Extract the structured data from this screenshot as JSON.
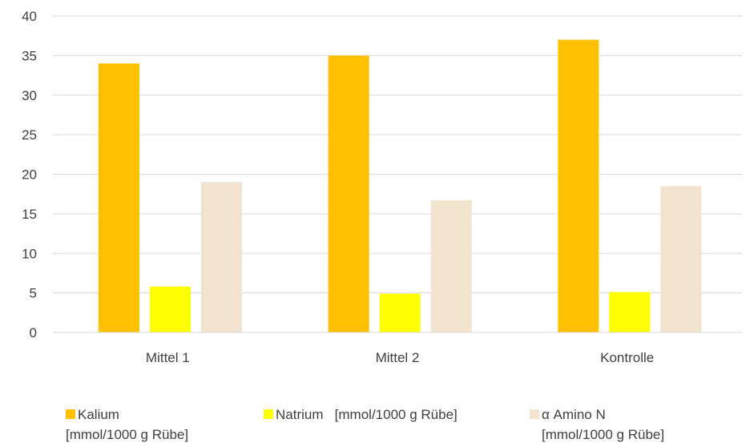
{
  "chart_data": {
    "type": "bar",
    "title": "",
    "xlabel": "",
    "ylabel": "",
    "categories": [
      "Mittel 1",
      "Mittel 2",
      "Kontrolle"
    ],
    "series": [
      {
        "name": "Kalium [mmol/1000 g Rübe]",
        "legend_lines": [
          "Kalium",
          "[mmol/1000 g Rübe]"
        ],
        "color": "#ffc000",
        "values": [
          34,
          35,
          37
        ]
      },
      {
        "name": "Natrium [mmol/1000 g Rübe]",
        "legend_lines": [
          "Natrium   [mmol/1000 g Rübe]"
        ],
        "color": "#ffff00",
        "values": [
          5.8,
          4.9,
          5.1
        ]
      },
      {
        "name": "α Amino N [mmol/1000 g Rübe]",
        "legend_lines": [
          "α Amino N",
          "[mmol/1000 g Rübe]"
        ],
        "color": "#f2e3cf",
        "values": [
          19,
          16.7,
          18.5
        ]
      }
    ],
    "ylim": [
      0,
      40
    ],
    "yticks": [
      0,
      5,
      10,
      15,
      20,
      25,
      30,
      35,
      40
    ],
    "grid": true,
    "legend_position": "bottom"
  }
}
